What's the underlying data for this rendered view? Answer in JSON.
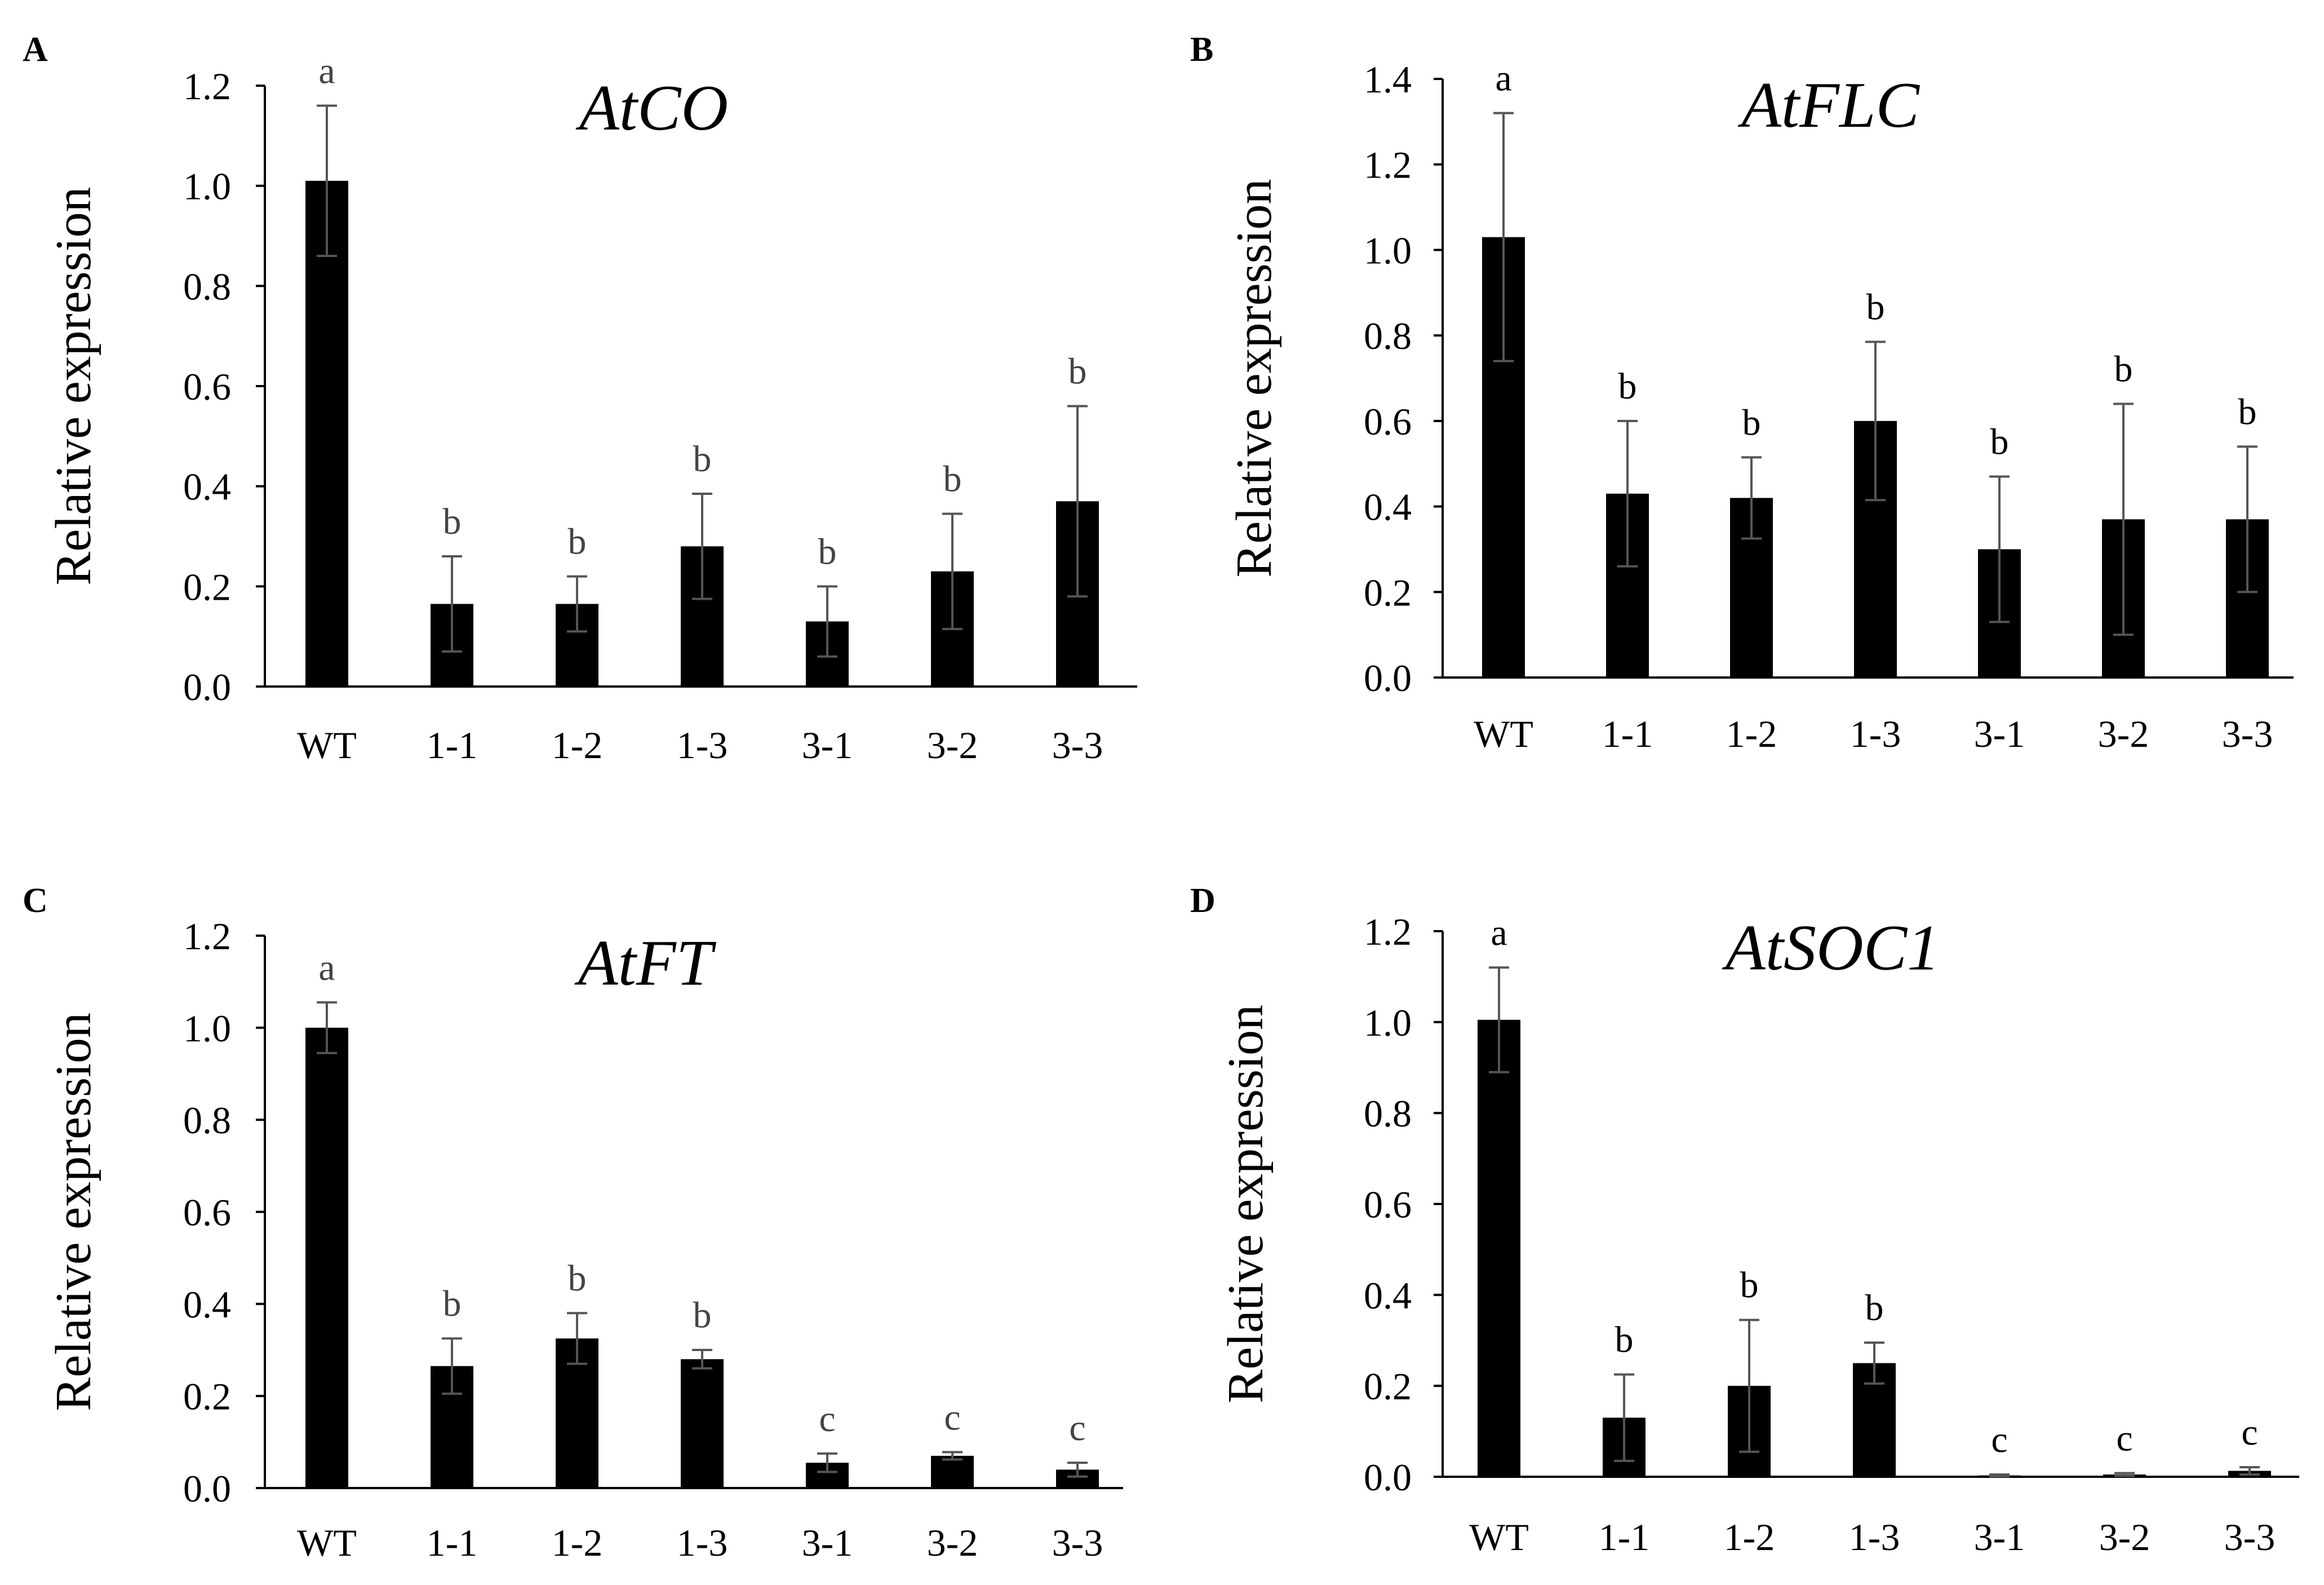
{
  "chart_data": [
    {
      "panel": "A",
      "type": "bar",
      "title": "AtCO",
      "ylabel": "Relative expression",
      "ylim": [
        0,
        1.2
      ],
      "yticks": [
        "0.0",
        "0.2",
        "0.4",
        "0.6",
        "0.8",
        "1.0",
        "1.2"
      ],
      "categories": [
        "WT",
        "1-1",
        "1-2",
        "1-3",
        "3-1",
        "3-2",
        "3-3"
      ],
      "values": [
        1.01,
        0.165,
        0.165,
        0.28,
        0.13,
        0.23,
        0.37
      ],
      "errors": [
        0.15,
        0.095,
        0.055,
        0.105,
        0.07,
        0.115,
        0.19
      ],
      "significance": [
        "a",
        "b",
        "b",
        "b",
        "b",
        "b",
        "b"
      ],
      "colors": {
        "bar": "#000000",
        "errorbar": "#555555",
        "sig": "#444444"
      }
    },
    {
      "panel": "B",
      "type": "bar",
      "title": "AtFLC",
      "ylabel": "Relative expression",
      "ylim": [
        0,
        1.4
      ],
      "yticks": [
        "0.0",
        "0.2",
        "0.4",
        "0.6",
        "0.8",
        "1.0",
        "1.2",
        "1.4"
      ],
      "categories": [
        "WT",
        "1-1",
        "1-2",
        "1-3",
        "3-1",
        "3-2",
        "3-3"
      ],
      "values": [
        1.03,
        0.43,
        0.42,
        0.6,
        0.3,
        0.37,
        0.37
      ],
      "errors": [
        0.29,
        0.17,
        0.095,
        0.185,
        0.17,
        0.27,
        0.17
      ],
      "significance": [
        "a",
        "b",
        "b",
        "b",
        "b",
        "b",
        "b"
      ],
      "colors": {
        "bar": "#000000",
        "errorbar": "#555555",
        "sig": "#000000"
      }
    },
    {
      "panel": "C",
      "type": "bar",
      "title": "AtFT",
      "ylabel": "Relative expression",
      "ylim": [
        0,
        1.2
      ],
      "yticks": [
        "0.0",
        "0.2",
        "0.4",
        "0.6",
        "0.8",
        "1.0",
        "1.2"
      ],
      "categories": [
        "WT",
        "1-1",
        "1-2",
        "1-3",
        "3-1",
        "3-2",
        "3-3"
      ],
      "values": [
        1.0,
        0.265,
        0.325,
        0.28,
        0.055,
        0.07,
        0.04
      ],
      "errors": [
        0.055,
        0.06,
        0.055,
        0.02,
        0.02,
        0.008,
        0.015
      ],
      "significance": [
        "a",
        "b",
        "b",
        "b",
        "c",
        "c",
        "c"
      ],
      "colors": {
        "bar": "#000000",
        "errorbar": "#555555",
        "sig": "#444444"
      }
    },
    {
      "panel": "D",
      "type": "bar",
      "title": "AtSOC1",
      "ylabel": "Relative expression",
      "ylim": [
        0,
        1.2
      ],
      "yticks": [
        "0.0",
        "0.2",
        "0.4",
        "0.6",
        "0.8",
        "1.0",
        "1.2"
      ],
      "categories": [
        "WT",
        "1-1",
        "1-2",
        "1-3",
        "3-1",
        "3-2",
        "3-3"
      ],
      "values": [
        1.005,
        0.13,
        0.2,
        0.25,
        0.003,
        0.005,
        0.013
      ],
      "errors": [
        0.115,
        0.095,
        0.145,
        0.045,
        0.002,
        0.003,
        0.008
      ],
      "significance": [
        "a",
        "b",
        "b",
        "b",
        "c",
        "c",
        "c"
      ],
      "colors": {
        "bar": "#000000",
        "errorbar": "#555555",
        "sig": "#000000"
      }
    }
  ]
}
